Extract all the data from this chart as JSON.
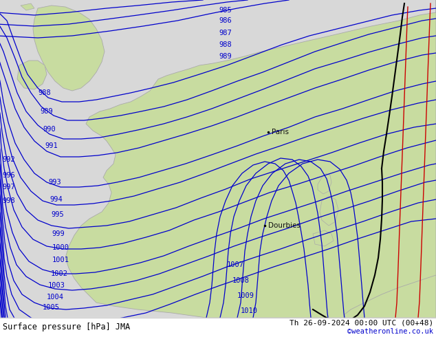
{
  "title_left": "Surface pressure [hPa] JMA",
  "title_right": "Th 26-09-2024 00:00 UTC (00+48)",
  "title_right2": "©weatheronline.co.uk",
  "ocean_color": "#d8d8d8",
  "land_color": "#c8dca0",
  "coast_color": "#aaaaaa",
  "isobar_color": "#0000cc",
  "black_line_color": "#000000",
  "red_line_color": "#cc0000",
  "figsize": [
    6.34,
    4.9
  ],
  "dpi": 100,
  "city_paris": "Paris",
  "city_dourbies": "Dourbies"
}
